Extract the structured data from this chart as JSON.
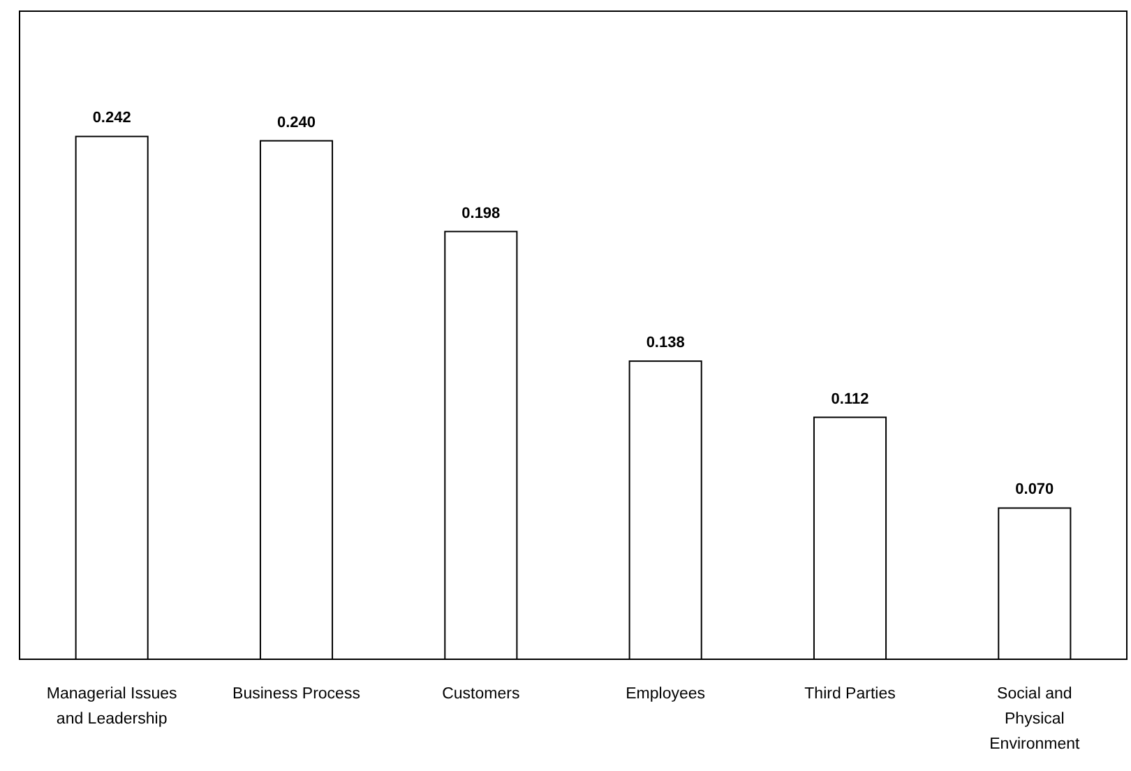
{
  "chart_data": {
    "type": "bar",
    "categories": [
      "Managerial Issues and Leadership",
      "Business Process",
      "Customers",
      "Employees",
      "Third Parties",
      "Social and Physical Environment"
    ],
    "values": [
      0.242,
      0.24,
      0.198,
      0.138,
      0.112,
      0.07
    ],
    "value_labels": [
      "0.242",
      "0.240",
      "0.198",
      "0.138",
      "0.112",
      "0.070"
    ],
    "color": "#ffffff",
    "ylim": [
      0,
      0.3
    ]
  }
}
